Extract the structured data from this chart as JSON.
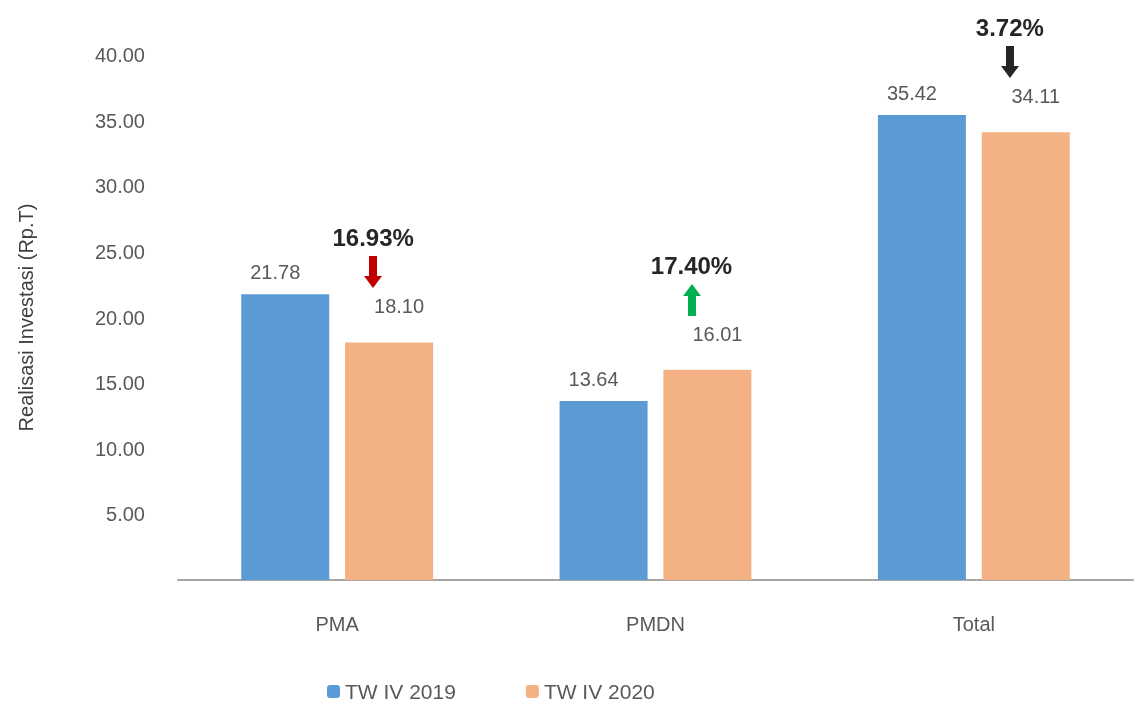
{
  "chart_data": {
    "type": "bar",
    "ylabel": "Realisasi Investasi (Rp.T)",
    "categories": [
      "PMA",
      "PMDN",
      "Total"
    ],
    "series": [
      {
        "name": "TW IV 2019",
        "color": "#5b9bd5",
        "values": [
          21.78,
          13.64,
          35.42
        ],
        "value_labels": [
          "21.78",
          "13.64",
          "35.42"
        ]
      },
      {
        "name": "TW IV 2020",
        "color": "#f4b183",
        "values": [
          18.1,
          16.01,
          34.11
        ],
        "value_labels": [
          "18.10",
          "16.01",
          "34.11"
        ]
      }
    ],
    "ylim": [
      0,
      40
    ],
    "yticks": [
      {
        "value": 0,
        "label": null
      },
      {
        "value": 5,
        "label": "5.00"
      },
      {
        "value": 10,
        "label": "10.00"
      },
      {
        "value": 15,
        "label": "15.00"
      },
      {
        "value": 20,
        "label": "20.00"
      },
      {
        "value": 25,
        "label": "25.00"
      },
      {
        "value": 30,
        "label": "30.00"
      },
      {
        "value": 35,
        "label": "35.00"
      },
      {
        "value": 40,
        "label": "40.00"
      }
    ],
    "annotations": [
      "16.93%",
      "17.40%",
      "3.72%"
    ],
    "grid": false,
    "legend": "bottom"
  }
}
